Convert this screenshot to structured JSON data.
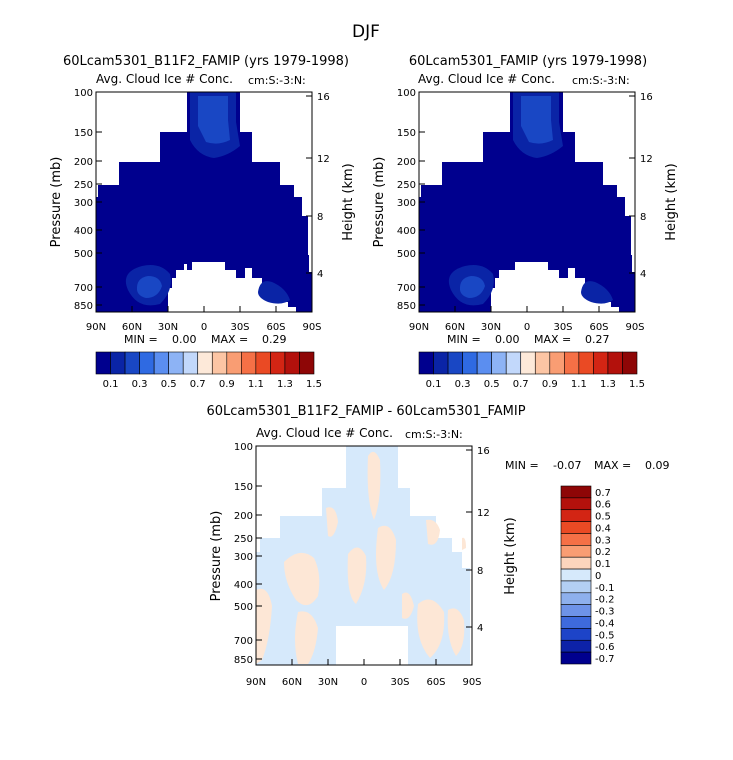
{
  "figure_title": "DJF",
  "chart_data": [
    {
      "type": "heatmap",
      "title": "60Lcam5301_B11F2_FAMIP (yrs 1979-1998)",
      "subtitle": "Avg. Cloud Ice # Conc.",
      "units": "cm:S:-3:N:",
      "xlabel": "",
      "ylabel": "Pressure (mb)",
      "y2label": "Height (km)",
      "xticks": [
        "90N",
        "60N",
        "30N",
        "0",
        "30S",
        "60S",
        "90S"
      ],
      "yticks": [
        "100",
        "150",
        "200",
        "250",
        "300",
        "400",
        "500",
        "700",
        "850"
      ],
      "y2ticks": [
        "16",
        "12",
        "8",
        "4"
      ],
      "stats": {
        "min_label": "MIN =",
        "min": "0.00",
        "max_label": "MAX =",
        "max": "0.29"
      },
      "levels": [
        0.1,
        0.2,
        0.3,
        0.4,
        0.5,
        0.6,
        0.7,
        0.8,
        0.9,
        1.0,
        1.1,
        1.2,
        1.3,
        1.4,
        1.5
      ],
      "colorbar_labels": [
        "0.1",
        "0.3",
        "0.5",
        "0.7",
        "0.9",
        "1.1",
        "1.3",
        "1.5"
      ]
    },
    {
      "type": "heatmap",
      "title": "60Lcam5301_FAMIP (yrs 1979-1998)",
      "subtitle": "Avg. Cloud Ice # Conc.",
      "units": "cm:S:-3:N:",
      "xlabel": "",
      "ylabel": "Pressure (mb)",
      "y2label": "Height (km)",
      "xticks": [
        "90N",
        "60N",
        "30N",
        "0",
        "30S",
        "60S",
        "90S"
      ],
      "yticks": [
        "100",
        "150",
        "200",
        "250",
        "300",
        "400",
        "500",
        "700",
        "850"
      ],
      "y2ticks": [
        "16",
        "12",
        "8",
        "4"
      ],
      "stats": {
        "min_label": "MIN =",
        "min": "0.00",
        "max_label": "MAX =",
        "max": "0.27"
      },
      "levels": [
        0.1,
        0.2,
        0.3,
        0.4,
        0.5,
        0.6,
        0.7,
        0.8,
        0.9,
        1.0,
        1.1,
        1.2,
        1.3,
        1.4,
        1.5
      ],
      "colorbar_labels": [
        "0.1",
        "0.3",
        "0.5",
        "0.7",
        "0.9",
        "1.1",
        "1.3",
        "1.5"
      ]
    },
    {
      "type": "heatmap",
      "title": "60Lcam5301_B11F2_FAMIP - 60Lcam5301_FAMIP",
      "subtitle": "Avg. Cloud Ice # Conc.",
      "units": "cm:S:-3:N:",
      "xlabel": "",
      "ylabel": "Pressure (mb)",
      "y2label": "Height (km)",
      "xticks": [
        "90N",
        "60N",
        "30N",
        "0",
        "30S",
        "60S",
        "90S"
      ],
      "yticks": [
        "100",
        "150",
        "200",
        "250",
        "300",
        "400",
        "500",
        "700",
        "850"
      ],
      "y2ticks": [
        "16",
        "12",
        "8",
        "4"
      ],
      "stats": {
        "min_label": "MIN =",
        "min": "-0.07",
        "max_label": "MAX =",
        "max": "0.09"
      },
      "levels": [
        0.7,
        0.6,
        0.5,
        0.4,
        0.3,
        0.2,
        0.1,
        0,
        -0.1,
        -0.2,
        -0.3,
        -0.4,
        -0.5,
        -0.6,
        -0.7
      ],
      "colorbar_labels": [
        "0.7",
        "0.6",
        "0.5",
        "0.4",
        "0.3",
        "0.2",
        "0.1",
        "0",
        "-0.1",
        "-0.2",
        "-0.3",
        "-0.4",
        "-0.5",
        "-0.6",
        "-0.7"
      ]
    }
  ],
  "colors": {
    "cb_seq": [
      "#00008e",
      "#0a24a6",
      "#1947c4",
      "#2f6ae2",
      "#5b8ef0",
      "#8db3f5",
      "#c2d8fb",
      "#fde9d9",
      "#fcc5a4",
      "#f99d73",
      "#f57046",
      "#ea4a24",
      "#d32514",
      "#b3110c",
      "#8e0606"
    ],
    "cb_div": [
      "#8e0606",
      "#b3110c",
      "#d32514",
      "#ea4a24",
      "#f57046",
      "#f99d73",
      "#fdd5bd",
      "#d6e9fb",
      "#b3cff3",
      "#8eb0ed",
      "#6e93e8",
      "#3e6add",
      "#1d44c8",
      "#0d22a8",
      "#00008e"
    ],
    "field_dark": "#00008e",
    "field_mid": "#0a24a6",
    "field_light": "#1947c4",
    "diff_blue": "#d6e9fb",
    "diff_peach": "#fde7d6"
  }
}
